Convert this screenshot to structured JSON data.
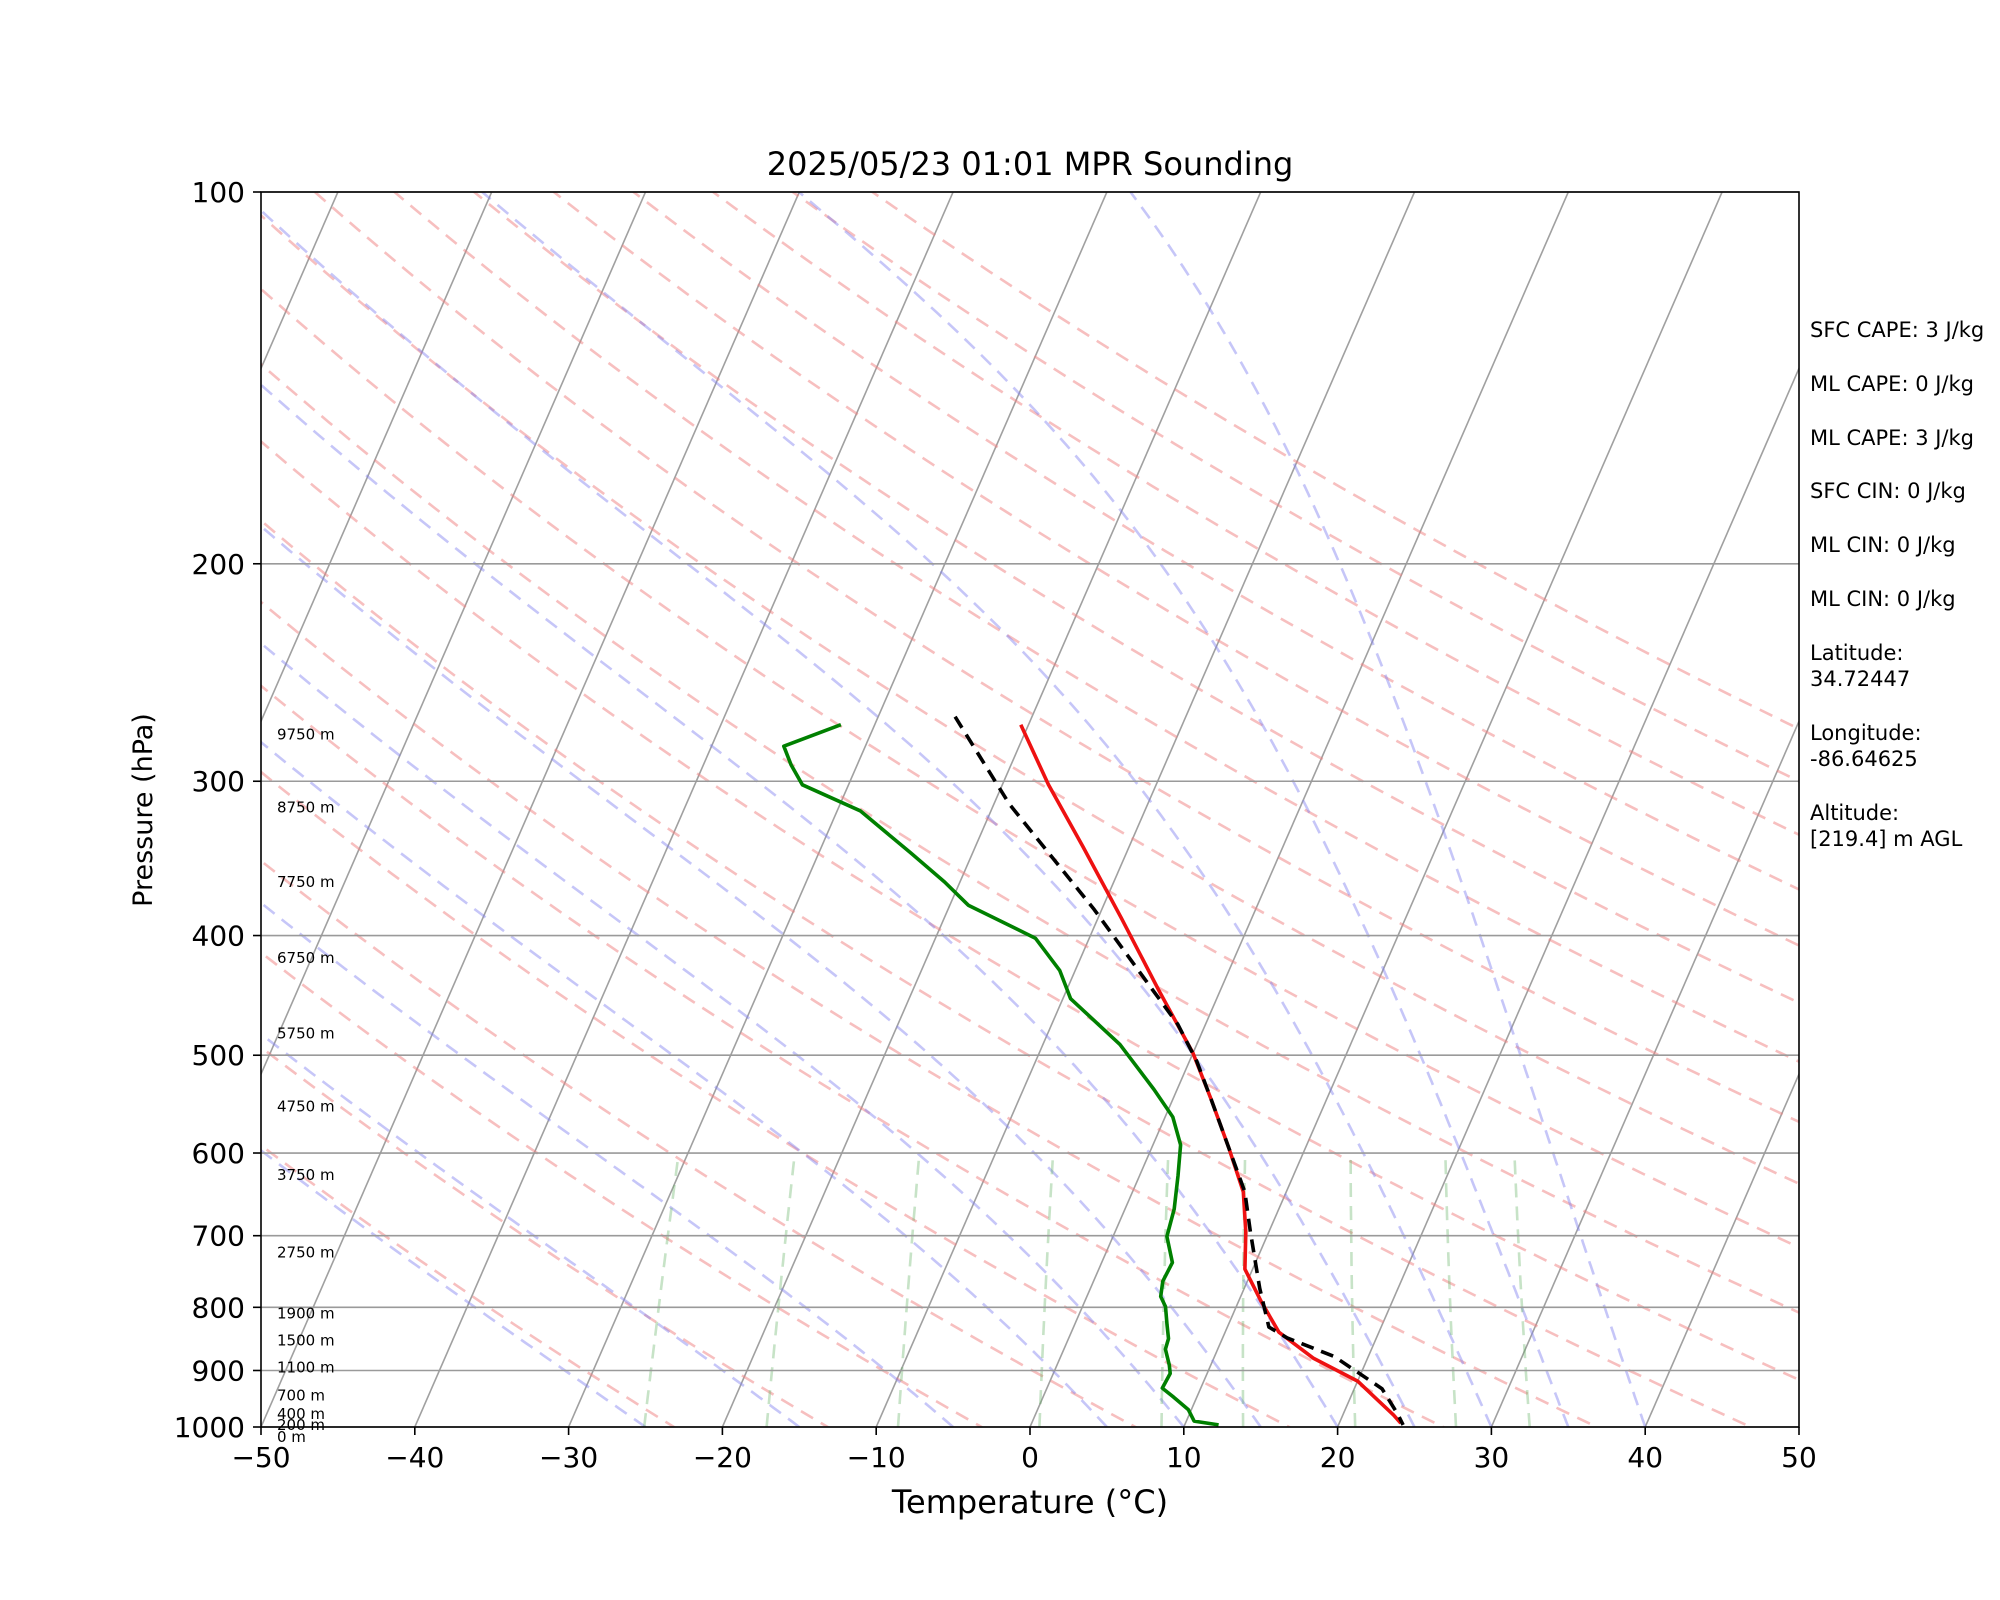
{
  "chart_data": {
    "type": "line",
    "title": "2025/05/23 01:01 MPR Sounding",
    "xlabel": "Temperature (°C)",
    "ylabel": "Pressure (hPa)",
    "xlim": [
      -50,
      50
    ],
    "ylim": [
      1000,
      100
    ],
    "y_scale": "log",
    "x_ticks": [
      "−50",
      "−40",
      "−30",
      "−20",
      "−10",
      "0",
      "10",
      "20",
      "30",
      "40",
      "50"
    ],
    "y_ticks": [
      "100",
      "200",
      "300",
      "400",
      "500",
      "600",
      "700",
      "800",
      "900",
      "1000"
    ],
    "height_labels": [
      {
        "text": "9750 m",
        "p": 275
      },
      {
        "text": "8750 m",
        "p": 315
      },
      {
        "text": "7750 m",
        "p": 362
      },
      {
        "text": "6750 m",
        "p": 417
      },
      {
        "text": "5750 m",
        "p": 480
      },
      {
        "text": "4750 m",
        "p": 550
      },
      {
        "text": "3750 m",
        "p": 625
      },
      {
        "text": "2750 m",
        "p": 722
      },
      {
        "text": "1900 m",
        "p": 809
      },
      {
        "text": "1500 m",
        "p": 851
      },
      {
        "text": "1100 m",
        "p": 895
      },
      {
        "text": "700 m",
        "p": 943
      },
      {
        "text": "400 m",
        "p": 976
      },
      {
        "text": "200 m",
        "p": 996
      },
      {
        "text": "0 m",
        "p": 1019
      }
    ],
    "series": [
      {
        "name": "",
        "style": "temperature",
        "color": "#ee1111",
        "points": [
          [
            -20.5,
            270
          ],
          [
            -17,
            302
          ],
          [
            -13,
            339
          ],
          [
            -8.5,
            387
          ],
          [
            -4,
            443
          ],
          [
            0,
            498
          ],
          [
            2.5,
            543
          ],
          [
            5,
            594
          ],
          [
            7.2,
            645
          ],
          [
            8.5,
            695
          ],
          [
            9.5,
            745
          ],
          [
            11.5,
            792
          ],
          [
            13.5,
            838
          ],
          [
            16.5,
            880
          ],
          [
            20,
            918
          ],
          [
            23.3,
            978
          ],
          [
            24,
            993
          ]
        ]
      },
      {
        "name": "",
        "style": "dewpoint",
        "color": "#008000",
        "points": [
          [
            -32.2,
            270
          ],
          [
            -35.3,
            281
          ],
          [
            -34.3,
            291
          ],
          [
            -33,
            302
          ],
          [
            -28.5,
            317
          ],
          [
            -24,
            343
          ],
          [
            -21,
            362
          ],
          [
            -18.8,
            378
          ],
          [
            -13.5,
            402
          ],
          [
            -11,
            427
          ],
          [
            -9.5,
            450
          ],
          [
            -5,
            490
          ],
          [
            -1.5,
            533
          ],
          [
            0.5,
            561
          ],
          [
            1.8,
            591
          ],
          [
            2.5,
            626
          ],
          [
            3.2,
            666
          ],
          [
            3.5,
            701
          ],
          [
            4.6,
            736
          ],
          [
            4.5,
            762
          ],
          [
            4.8,
            784
          ],
          [
            5.4,
            799
          ],
          [
            6,
            826
          ],
          [
            6.5,
            848
          ],
          [
            6.6,
            865
          ],
          [
            7.3,
            891
          ],
          [
            7.6,
            905
          ],
          [
            7.5,
            930
          ],
          [
            8.5,
            946
          ],
          [
            9.8,
            968
          ],
          [
            10.5,
            989
          ],
          [
            12.2,
            996
          ]
        ]
      },
      {
        "name": "",
        "style": "parcel",
        "color": "#000000",
        "points": [
          [
            -25,
            266
          ],
          [
            -19,
            313
          ],
          [
            -10.5,
            381
          ],
          [
            -5.5,
            431
          ],
          [
            -1.8,
            472
          ],
          [
            0.5,
            506
          ],
          [
            2.5,
            543
          ],
          [
            5,
            594
          ],
          [
            7.3,
            645
          ],
          [
            8.8,
            695
          ],
          [
            11,
            772
          ],
          [
            12.7,
            830
          ],
          [
            14.2,
            847
          ],
          [
            17.8,
            877
          ],
          [
            21.8,
            931
          ],
          [
            23.5,
            975
          ],
          [
            24.2,
            996
          ]
        ]
      }
    ],
    "background_lines": {
      "isotherm_temps": [
        -120,
        -110,
        -100,
        -90,
        -80,
        -70,
        -60,
        -50,
        -40,
        -30,
        -20,
        -10,
        0,
        10,
        20,
        30,
        40,
        50
      ],
      "dry_adiabat_thetas_K": [
        250,
        260,
        270,
        280,
        290,
        300,
        310,
        320,
        330,
        340,
        350,
        360,
        370,
        380,
        390,
        400,
        410,
        420,
        430,
        440
      ],
      "moist_adiabat_start_temps": [
        -25,
        -15,
        -5,
        5,
        10,
        15,
        20,
        25,
        30,
        35,
        40
      ],
      "mixing_ratios_gkg": [
        0.5,
        1,
        2,
        4,
        7,
        10,
        16,
        24,
        32
      ]
    },
    "grid": true,
    "legend": "none"
  },
  "indices": [
    "SFC CAPE: 3 J/kg",
    "ML CAPE: 0 J/kg",
    "ML CAPE: 3 J/kg",
    "SFC CIN: 0 J/kg",
    "ML CIN: 0 J/kg",
    "ML CIN: 0 J/kg"
  ],
  "location": {
    "latitude": "Latitude:\n34.72447",
    "longitude": "Longitude:\n-86.64625",
    "altitude": "Altitude:\n[219.4] m AGL"
  },
  "colors": {
    "temperature": "#ee1111",
    "dewpoint": "#008000",
    "parcel": "#000000",
    "dry_adiabat": "#f08080",
    "moist_adiabat": "#8080f0",
    "mixing_ratio": "#5fae5f",
    "isotherm": "#888888"
  }
}
